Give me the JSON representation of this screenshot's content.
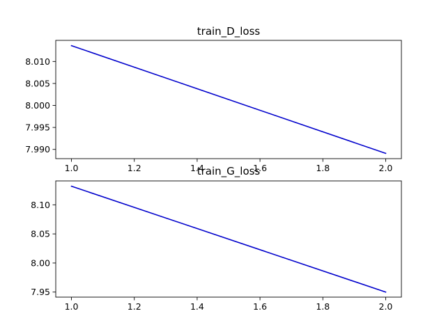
{
  "chart_data": [
    {
      "type": "line",
      "title": "train_D_loss",
      "xlabel": "",
      "ylabel": "",
      "grid": false,
      "x": [
        1.0,
        2.0
      ],
      "series": [
        {
          "values": [
            8.0136,
            7.9891
          ],
          "color": "#0000cc"
        }
      ],
      "xlim": [
        0.95,
        2.05
      ],
      "ylim": [
        7.9879,
        8.0148
      ],
      "xticks": [
        1.0,
        1.2,
        1.4,
        1.6,
        1.8,
        2.0
      ],
      "xtick_labels": [
        "1.0",
        "1.2",
        "1.4",
        "1.6",
        "1.8",
        "2.0"
      ],
      "yticks": [
        7.99,
        7.995,
        8.0,
        8.005,
        8.01
      ],
      "ytick_labels": [
        "7.990",
        "7.995",
        "8.000",
        "8.005",
        "8.010"
      ]
    },
    {
      "type": "line",
      "title": "train_G_loss",
      "xlabel": "",
      "ylabel": "",
      "grid": false,
      "x": [
        1.0,
        2.0
      ],
      "series": [
        {
          "values": [
            8.132,
            7.95
          ],
          "color": "#0000cc"
        }
      ],
      "xlim": [
        0.95,
        2.05
      ],
      "ylim": [
        7.9413,
        8.1411
      ],
      "xticks": [
        1.0,
        1.2,
        1.4,
        1.6,
        1.8,
        2.0
      ],
      "xtick_labels": [
        "1.0",
        "1.2",
        "1.4",
        "1.6",
        "1.8",
        "2.0"
      ],
      "yticks": [
        7.95,
        8.0,
        8.05,
        8.1
      ],
      "ytick_labels": [
        "7.95",
        "8.00",
        "8.05",
        "8.10"
      ]
    }
  ]
}
